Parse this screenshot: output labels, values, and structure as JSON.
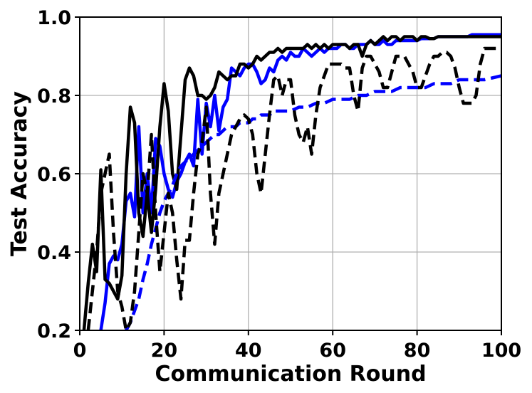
{
  "chart_data": {
    "type": "line",
    "xlabel": "Communication Round",
    "ylabel": "Test Accuracy",
    "xlim": [
      0,
      100
    ],
    "ylim": [
      0.2,
      1.0
    ],
    "xticks": [
      "0",
      "20",
      "40",
      "60",
      "80",
      "100"
    ],
    "yticks": [
      "0.2",
      "0.4",
      "0.6",
      "0.8",
      "1.0"
    ],
    "grid": true,
    "series": [
      {
        "color": "#0000ff",
        "dash": "solid",
        "x": [
          1,
          2,
          3,
          4,
          5,
          6,
          7,
          8,
          9,
          10,
          11,
          12,
          13,
          14,
          15,
          16,
          17,
          18,
          19,
          20,
          21,
          22,
          23,
          24,
          25,
          26,
          27,
          28,
          29,
          30,
          31,
          32,
          33,
          34,
          35,
          36,
          37,
          38,
          39,
          40,
          41,
          42,
          43,
          44,
          45,
          46,
          47,
          48,
          49,
          50,
          51,
          52,
          53,
          54,
          55,
          56,
          57,
          58,
          59,
          60,
          61,
          62,
          63,
          64,
          65,
          66,
          67,
          68,
          69,
          70,
          71,
          72,
          73,
          74,
          75,
          76,
          77,
          78,
          79,
          80,
          81,
          82,
          83,
          84,
          85,
          86,
          87,
          88,
          89,
          90,
          91,
          92,
          93,
          94,
          95,
          96,
          97,
          98,
          99,
          100
        ],
        "y": [
          0.13,
          0.15,
          0.17,
          0.18,
          0.2,
          0.27,
          0.37,
          0.39,
          0.38,
          0.42,
          0.53,
          0.55,
          0.49,
          0.72,
          0.5,
          0.6,
          0.5,
          0.69,
          0.67,
          0.6,
          0.56,
          0.54,
          0.58,
          0.6,
          0.63,
          0.65,
          0.62,
          0.79,
          0.65,
          0.78,
          0.72,
          0.8,
          0.71,
          0.77,
          0.79,
          0.87,
          0.86,
          0.85,
          0.87,
          0.88,
          0.88,
          0.86,
          0.83,
          0.84,
          0.87,
          0.86,
          0.89,
          0.9,
          0.89,
          0.91,
          0.9,
          0.9,
          0.92,
          0.91,
          0.9,
          0.91,
          0.92,
          0.91,
          0.92,
          0.92,
          0.92,
          0.93,
          0.93,
          0.92,
          0.92,
          0.93,
          0.93,
          0.93,
          0.94,
          0.93,
          0.93,
          0.94,
          0.93,
          0.93,
          0.94,
          0.94,
          0.94,
          0.94,
          0.94,
          0.94,
          0.945,
          0.945,
          0.945,
          0.945,
          0.95,
          0.95,
          0.95,
          0.95,
          0.95,
          0.95,
          0.95,
          0.95,
          0.955,
          0.955,
          0.955,
          0.955,
          0.955,
          0.955,
          0.955,
          0.955
        ]
      },
      {
        "color": "#000000",
        "dash": "solid",
        "x": [
          1,
          2,
          3,
          4,
          5,
          6,
          7,
          8,
          9,
          10,
          11,
          12,
          13,
          14,
          15,
          16,
          17,
          18,
          19,
          20,
          21,
          22,
          23,
          24,
          25,
          26,
          27,
          28,
          29,
          30,
          31,
          32,
          33,
          34,
          35,
          36,
          37,
          38,
          39,
          40,
          41,
          42,
          43,
          44,
          45,
          46,
          47,
          48,
          49,
          50,
          51,
          52,
          53,
          54,
          55,
          56,
          57,
          58,
          59,
          60,
          61,
          62,
          63,
          64,
          65,
          66,
          67,
          68,
          69,
          70,
          71,
          72,
          73,
          74,
          75,
          76,
          77,
          78,
          79,
          80,
          81,
          82,
          83,
          84,
          85,
          86,
          87,
          88,
          89,
          90,
          91,
          92,
          93,
          94,
          95,
          96,
          97,
          98,
          99,
          100
        ],
        "y": [
          0.2,
          0.32,
          0.42,
          0.35,
          0.61,
          0.33,
          0.32,
          0.3,
          0.28,
          0.34,
          0.6,
          0.77,
          0.73,
          0.5,
          0.44,
          0.55,
          0.45,
          0.56,
          0.72,
          0.83,
          0.76,
          0.6,
          0.56,
          0.7,
          0.84,
          0.87,
          0.85,
          0.8,
          0.8,
          0.79,
          0.8,
          0.82,
          0.86,
          0.85,
          0.84,
          0.85,
          0.85,
          0.88,
          0.88,
          0.87,
          0.88,
          0.9,
          0.89,
          0.9,
          0.91,
          0.91,
          0.92,
          0.91,
          0.92,
          0.92,
          0.92,
          0.92,
          0.92,
          0.93,
          0.92,
          0.93,
          0.92,
          0.93,
          0.92,
          0.93,
          0.93,
          0.93,
          0.93,
          0.92,
          0.93,
          0.93,
          0.9,
          0.93,
          0.94,
          0.93,
          0.94,
          0.95,
          0.94,
          0.95,
          0.95,
          0.94,
          0.95,
          0.95,
          0.95,
          0.94,
          0.95,
          0.95,
          0.945,
          0.945,
          0.95,
          0.95,
          0.95,
          0.95,
          0.95,
          0.95,
          0.95,
          0.95,
          0.95,
          0.95,
          0.95,
          0.95,
          0.95,
          0.95,
          0.95,
          0.95
        ]
      },
      {
        "color": "#0000ff",
        "dash": "dashed",
        "x": [
          11,
          12,
          13,
          14,
          15,
          16,
          17,
          18,
          19,
          20,
          21,
          22,
          23,
          24,
          25,
          26,
          27,
          28,
          29,
          30,
          31,
          32,
          33,
          34,
          35,
          36,
          37,
          38,
          39,
          40,
          41,
          42,
          43,
          44,
          45,
          46,
          47,
          48,
          49,
          50,
          52,
          54,
          56,
          58,
          60,
          62,
          64,
          66,
          68,
          70,
          72,
          74,
          76,
          78,
          80,
          82,
          84,
          86,
          88,
          90,
          92,
          94,
          96,
          98,
          100
        ],
        "y": [
          0.2,
          0.22,
          0.25,
          0.28,
          0.33,
          0.37,
          0.42,
          0.46,
          0.5,
          0.53,
          0.55,
          0.57,
          0.6,
          0.62,
          0.63,
          0.64,
          0.65,
          0.66,
          0.67,
          0.68,
          0.69,
          0.7,
          0.7,
          0.71,
          0.72,
          0.72,
          0.72,
          0.73,
          0.73,
          0.73,
          0.74,
          0.74,
          0.75,
          0.75,
          0.75,
          0.76,
          0.76,
          0.76,
          0.76,
          0.76,
          0.77,
          0.77,
          0.78,
          0.78,
          0.79,
          0.79,
          0.79,
          0.8,
          0.8,
          0.81,
          0.81,
          0.81,
          0.82,
          0.82,
          0.82,
          0.82,
          0.83,
          0.83,
          0.83,
          0.84,
          0.84,
          0.84,
          0.84,
          0.845,
          0.85
        ]
      },
      {
        "color": "#000000",
        "dash": "dashed",
        "x": [
          2,
          3,
          4,
          5,
          6,
          7,
          8,
          9,
          10,
          11,
          12,
          13,
          14,
          15,
          16,
          17,
          18,
          19,
          20,
          21,
          22,
          23,
          24,
          25,
          26,
          27,
          28,
          29,
          30,
          31,
          32,
          33,
          34,
          35,
          36,
          37,
          38,
          39,
          40,
          41,
          42,
          43,
          44,
          45,
          46,
          47,
          48,
          49,
          50,
          51,
          52,
          53,
          54,
          55,
          56,
          57,
          58,
          59,
          60,
          61,
          62,
          63,
          64,
          65,
          66,
          67,
          68,
          69,
          70,
          71,
          72,
          73,
          74,
          75,
          76,
          77,
          78,
          79,
          80,
          81,
          82,
          83,
          84,
          85,
          86,
          87,
          88,
          89,
          90,
          91,
          92,
          93,
          94,
          95,
          96,
          97,
          98,
          99,
          100
        ],
        "y": [
          0.2,
          0.3,
          0.4,
          0.55,
          0.6,
          0.65,
          0.45,
          0.3,
          0.26,
          0.2,
          0.22,
          0.3,
          0.45,
          0.6,
          0.55,
          0.7,
          0.5,
          0.35,
          0.45,
          0.55,
          0.5,
          0.38,
          0.28,
          0.43,
          0.43,
          0.55,
          0.65,
          0.68,
          0.77,
          0.55,
          0.42,
          0.55,
          0.6,
          0.65,
          0.7,
          0.72,
          0.74,
          0.75,
          0.74,
          0.7,
          0.6,
          0.55,
          0.65,
          0.75,
          0.84,
          0.85,
          0.8,
          0.84,
          0.84,
          0.75,
          0.7,
          0.68,
          0.72,
          0.65,
          0.75,
          0.82,
          0.85,
          0.88,
          0.88,
          0.88,
          0.88,
          0.87,
          0.87,
          0.8,
          0.76,
          0.87,
          0.9,
          0.9,
          0.88,
          0.86,
          0.82,
          0.82,
          0.86,
          0.9,
          0.9,
          0.9,
          0.88,
          0.86,
          0.82,
          0.82,
          0.85,
          0.88,
          0.9,
          0.9,
          0.91,
          0.91,
          0.9,
          0.87,
          0.82,
          0.78,
          0.78,
          0.78,
          0.8,
          0.88,
          0.92,
          0.92,
          0.92,
          0.92,
          0.92
        ]
      }
    ]
  }
}
